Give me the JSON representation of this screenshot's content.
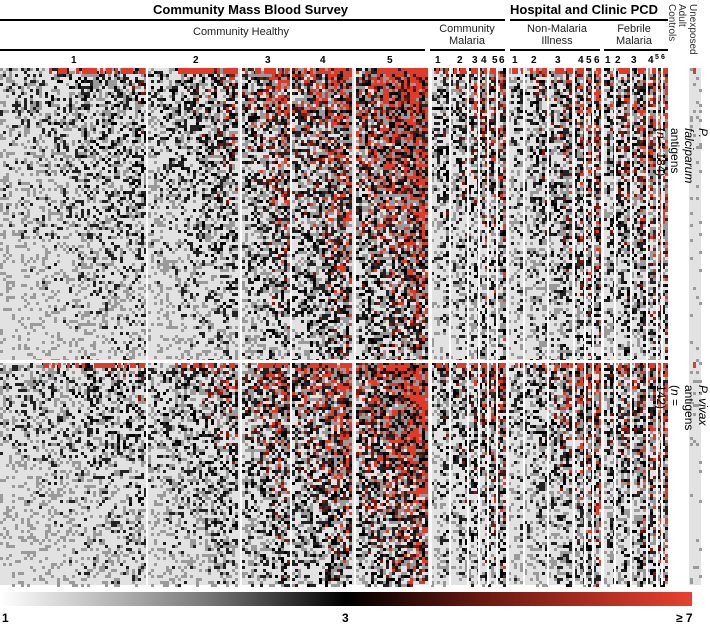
{
  "chart_data": {
    "type": "heatmap",
    "group_headers": [
      "Community Mass Blood Survey",
      "Hospital and Clinic PCD"
    ],
    "subgroup_headers": [
      "Community Healthy",
      "Community Malaria",
      "Non-Malaria Illness",
      "Febrile Malaria",
      "Unexposed Adult Controls"
    ],
    "column_labels": {
      "community_healthy": [
        "1",
        "2",
        "3",
        "4",
        "5"
      ],
      "community_malaria": [
        "1",
        "2",
        "3",
        "4",
        "5",
        "6"
      ],
      "non_malaria_illness": [
        "1",
        "2",
        "3",
        "4",
        "5",
        "6"
      ],
      "febrile_malaria": [
        "1",
        "2",
        "3",
        "4",
        "5",
        "6"
      ]
    },
    "row_groups": [
      {
        "label_species": "P. falciparum",
        "label_rest": " antigens (",
        "label_n": "n",
        "label_end": " = 184)",
        "count": 184
      },
      {
        "label_species": "P. vivax",
        "label_rest": " antigens (",
        "label_n": "n",
        "label_end": " = 142)",
        "count": 142
      }
    ],
    "colorscale": {
      "min_label": "1",
      "mid_label": "3",
      "max_label": "≥ 7",
      "colors": [
        "#ffffff",
        "#777777",
        "#000000",
        "#6a1a10",
        "#e84030"
      ]
    }
  }
}
